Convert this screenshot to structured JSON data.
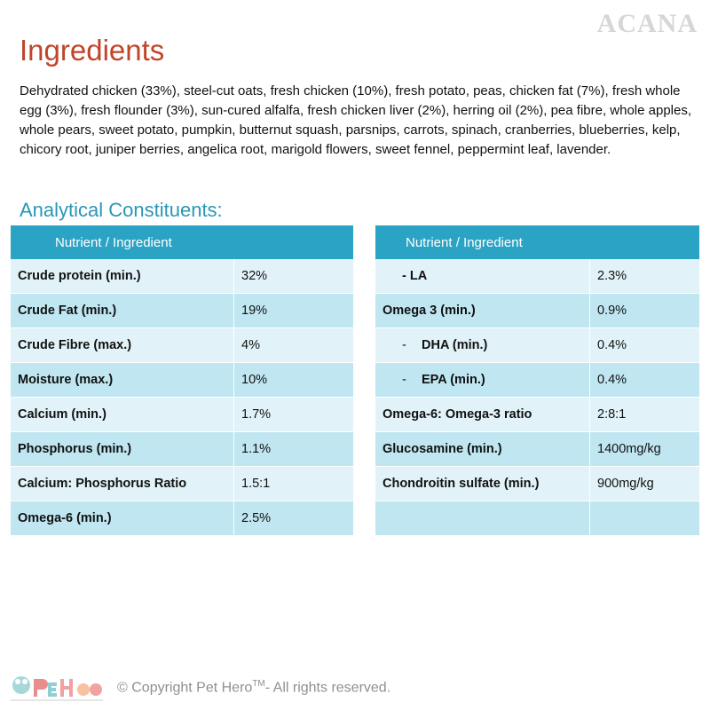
{
  "brand": "ACANA",
  "title": "Ingredients",
  "ingredients_text": "Dehydrated chicken (33%), steel-cut oats, fresh chicken (10%), fresh potato, peas, chicken fat (7%), fresh whole egg (3%), fresh flounder (3%), sun-cured alfalfa, fresh chicken liver (2%), herring oil (2%), pea fibre, whole apples, whole pears, sweet potato, pumpkin, butternut squash, parsnips, carrots, spinach, cranberries, blueberries, kelp, chicory root, juniper berries, angelica root, marigold flowers, sweet fennel, peppermint leaf, lavender.",
  "analytical_title": "Analytical Constituents:",
  "left_table": {
    "header": "Nutrient / Ingredient",
    "rows": [
      {
        "name": "Crude protein (min.)",
        "value": "32%"
      },
      {
        "name": "Crude Fat (min.)",
        "value": "19%"
      },
      {
        "name": "Crude Fibre (max.)",
        "value": "4%"
      },
      {
        "name": "Moisture (max.)",
        "value": "10%"
      },
      {
        "name": "Calcium (min.)",
        "value": "1.7%"
      },
      {
        "name": "Phosphorus (min.)",
        "value": "1.1%"
      },
      {
        "name": "Calcium: Phosphorus Ratio",
        "value": "1.5:1"
      },
      {
        "name": "Omega-6 (min.)",
        "value": "2.5%"
      }
    ]
  },
  "right_table": {
    "header": "Nutrient / Ingredient",
    "rows": [
      {
        "name": "- LA",
        "value": "2.3%"
      },
      {
        "name": "Omega 3 (min.)",
        "value": "0.9%"
      },
      {
        "dash": "-",
        "name": "DHA (min.)",
        "value": "0.4%"
      },
      {
        "dash": "-",
        "name": "EPA (min.)",
        "value": "0.4%"
      },
      {
        "name": "Omega-6: Omega-3 ratio",
        "value": "2:8:1"
      },
      {
        "name": "Glucosamine (min.)",
        "value": "1400mg/kg"
      },
      {
        "name": "Chondroitin sulfate (min.)",
        "value": "900mg/kg"
      },
      {
        "name": "",
        "value": ""
      }
    ]
  },
  "footer": {
    "copyright_prefix": "© Copyright Pet Hero",
    "copyright_tm": "TM",
    "copyright_suffix": "- All rights reserved.",
    "logo_text": "Pet Hero"
  },
  "colors": {
    "title": "#c0452a",
    "subtitle": "#2a97b4",
    "header_bg": "#2ba3c4",
    "row_dark": "#bfe6f1",
    "row_light": "#e1f3f8"
  }
}
